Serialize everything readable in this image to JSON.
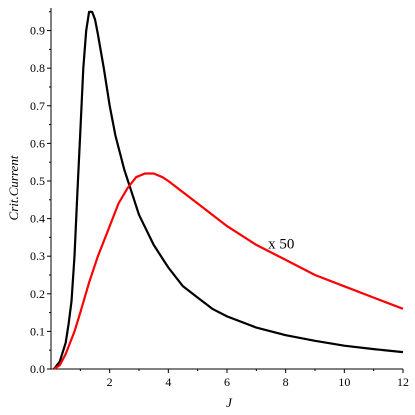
{
  "chart_data": {
    "type": "line",
    "xlabel": "J",
    "ylabel": "Crit.Current",
    "xlim": [
      0,
      12
    ],
    "ylim": [
      0,
      0.96
    ],
    "x_ticks": [
      2,
      4,
      6,
      8,
      10,
      12
    ],
    "y_ticks": [
      0.0,
      0.1,
      0.2,
      0.3,
      0.4,
      0.5,
      0.6,
      0.7,
      0.8,
      0.9
    ],
    "x_tick_labels": [
      "2",
      "4",
      "6",
      "8",
      "10",
      "12"
    ],
    "y_tick_labels": [
      "0.0",
      "0.1",
      "0.2",
      "0.3",
      "0.4",
      "0.5",
      "0.6",
      "0.7",
      "0.8",
      "0.9"
    ],
    "grid": false,
    "series": [
      {
        "color": "#000000",
        "points": [
          [
            0.1,
            0.0
          ],
          [
            0.3,
            0.02
          ],
          [
            0.5,
            0.07
          ],
          [
            0.6,
            0.12
          ],
          [
            0.7,
            0.18
          ],
          [
            0.8,
            0.3
          ],
          [
            0.9,
            0.47
          ],
          [
            1.0,
            0.63
          ],
          [
            1.1,
            0.8
          ],
          [
            1.2,
            0.9
          ],
          [
            1.3,
            0.95
          ],
          [
            1.4,
            0.95
          ],
          [
            1.5,
            0.93
          ],
          [
            1.6,
            0.89
          ],
          [
            1.8,
            0.8
          ],
          [
            2.0,
            0.7
          ],
          [
            2.2,
            0.62
          ],
          [
            2.5,
            0.53
          ],
          [
            3.0,
            0.41
          ],
          [
            3.5,
            0.33
          ],
          [
            4.0,
            0.27
          ],
          [
            4.5,
            0.22
          ],
          [
            5.0,
            0.19
          ],
          [
            5.5,
            0.16
          ],
          [
            6.0,
            0.14
          ],
          [
            7.0,
            0.11
          ],
          [
            8.0,
            0.09
          ],
          [
            9.0,
            0.075
          ],
          [
            10.0,
            0.062
          ],
          [
            11.0,
            0.053
          ],
          [
            12.0,
            0.045
          ]
        ]
      },
      {
        "color": "#ff0000",
        "points": [
          [
            0.1,
            0.0
          ],
          [
            0.3,
            0.01
          ],
          [
            0.5,
            0.04
          ],
          [
            0.8,
            0.1
          ],
          [
            1.0,
            0.15
          ],
          [
            1.3,
            0.23
          ],
          [
            1.6,
            0.3
          ],
          [
            2.0,
            0.38
          ],
          [
            2.3,
            0.44
          ],
          [
            2.6,
            0.48
          ],
          [
            2.9,
            0.51
          ],
          [
            3.2,
            0.52
          ],
          [
            3.5,
            0.52
          ],
          [
            3.8,
            0.51
          ],
          [
            4.0,
            0.5
          ],
          [
            4.5,
            0.47
          ],
          [
            5.0,
            0.44
          ],
          [
            6.0,
            0.38
          ],
          [
            7.0,
            0.33
          ],
          [
            8.0,
            0.29
          ],
          [
            9.0,
            0.25
          ],
          [
            10.0,
            0.22
          ],
          [
            11.0,
            0.19
          ],
          [
            12.0,
            0.16
          ]
        ]
      }
    ],
    "annotations": [
      {
        "text": "x 50",
        "x": 7.4,
        "y": 0.32
      }
    ]
  }
}
